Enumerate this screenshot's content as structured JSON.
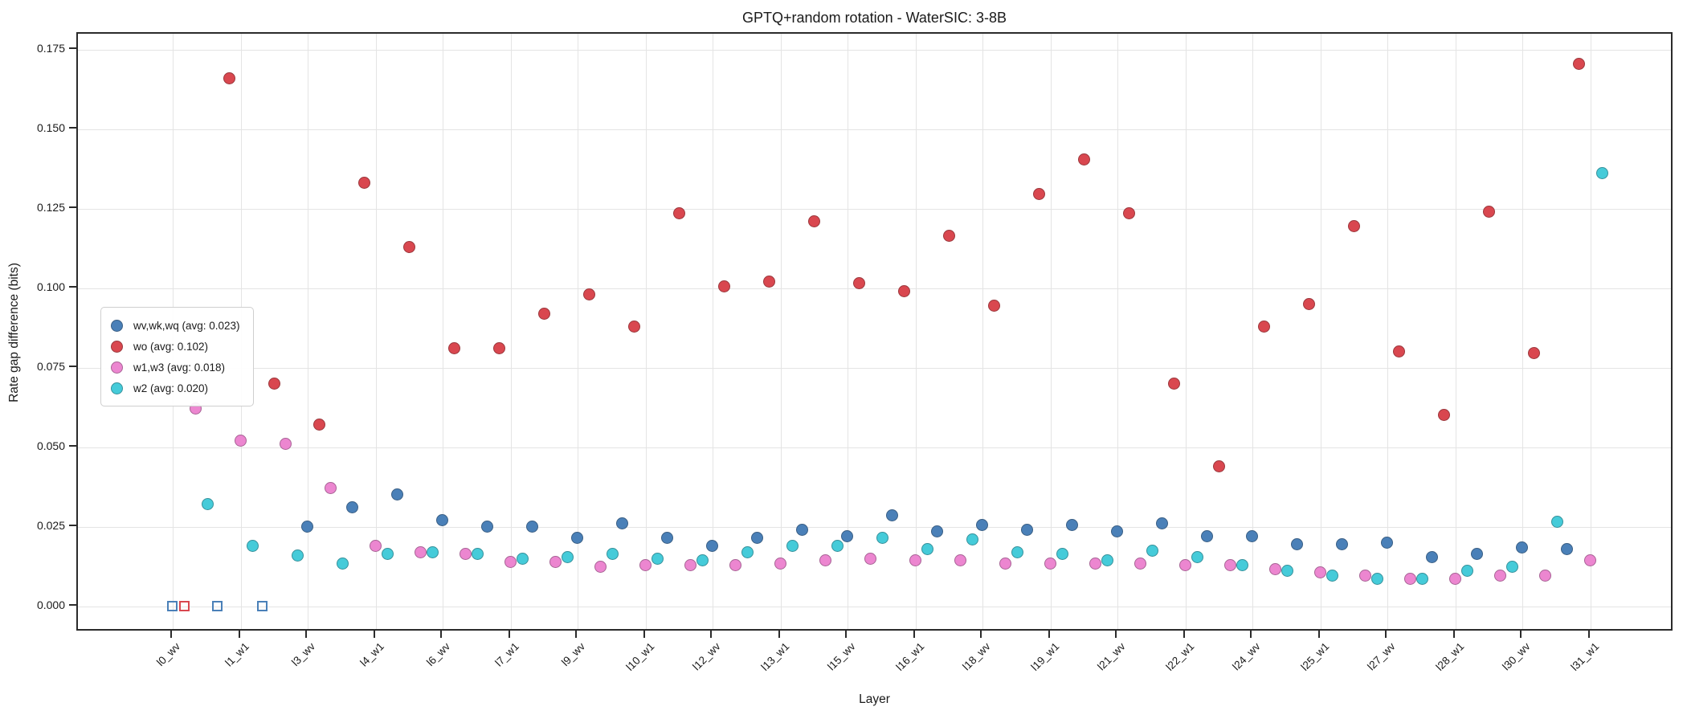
{
  "chart_data": {
    "type": "scatter",
    "title": "GPTQ+random rotation - WaterSIC: 3-8B",
    "xlabel": "Layer",
    "ylabel": "Rate gap difference (bits)",
    "grid": true,
    "legend_position": "center-left",
    "n_layers": 32,
    "ylim": [
      -0.008,
      0.18
    ],
    "y_tick_values": [
      0.0,
      0.025,
      0.05,
      0.075,
      0.1,
      0.125,
      0.15,
      0.175
    ],
    "y_tick_labels": [
      "0.000",
      "0.025",
      "0.050",
      "0.075",
      "0.100",
      "0.125",
      "0.150",
      "0.175"
    ],
    "x_tick_labels": [
      {
        "layer": 0,
        "align": "wv",
        "label": "l0_wv"
      },
      {
        "layer": 1,
        "align": "w1",
        "label": "l1_w1"
      },
      {
        "layer": 3,
        "align": "wv",
        "label": "l3_wv"
      },
      {
        "layer": 4,
        "align": "w1",
        "label": "l4_w1"
      },
      {
        "layer": 6,
        "align": "wv",
        "label": "l6_wv"
      },
      {
        "layer": 7,
        "align": "w1",
        "label": "l7_w1"
      },
      {
        "layer": 9,
        "align": "wv",
        "label": "l9_wv"
      },
      {
        "layer": 10,
        "align": "w1",
        "label": "l10_w1"
      },
      {
        "layer": 12,
        "align": "wv",
        "label": "l12_wv"
      },
      {
        "layer": 13,
        "align": "w1",
        "label": "l13_w1"
      },
      {
        "layer": 15,
        "align": "wv",
        "label": "l15_wv"
      },
      {
        "layer": 16,
        "align": "w1",
        "label": "l16_w1"
      },
      {
        "layer": 18,
        "align": "wv",
        "label": "l18_wv"
      },
      {
        "layer": 19,
        "align": "w1",
        "label": "l19_w1"
      },
      {
        "layer": 21,
        "align": "wv",
        "label": "l21_wv"
      },
      {
        "layer": 22,
        "align": "w1",
        "label": "l22_w1"
      },
      {
        "layer": 24,
        "align": "wv",
        "label": "l24_wv"
      },
      {
        "layer": 25,
        "align": "w1",
        "label": "l25_w1"
      },
      {
        "layer": 27,
        "align": "wv",
        "label": "l27_wv"
      },
      {
        "layer": 28,
        "align": "w1",
        "label": "l28_w1"
      },
      {
        "layer": 30,
        "align": "wv",
        "label": "l30_wv"
      },
      {
        "layer": 31,
        "align": "w1",
        "label": "l31_w1"
      }
    ],
    "series": [
      {
        "name": "wv,wk,wq",
        "legend_label": "wv,wk,wq (avg: 0.023)",
        "avg": 0.023,
        "color": "#4a80b8",
        "zero_open_square_layers": [
          0,
          1,
          2
        ],
        "values": [
          0,
          0,
          0,
          0.025,
          0.031,
          0.035,
          0.027,
          0.025,
          0.025,
          0.0215,
          0.026,
          0.0215,
          0.019,
          0.0215,
          0.024,
          0.022,
          0.0285,
          0.0235,
          0.0255,
          0.024,
          0.0255,
          0.0235,
          0.026,
          0.022,
          0.022,
          0.0195,
          0.0195,
          0.02,
          0.0155,
          0.0165,
          0.0185,
          0.018
        ]
      },
      {
        "name": "wo",
        "legend_label": "wo (avg: 0.102)",
        "avg": 0.102,
        "color": "#d9474f",
        "zero_open_square_layers": [
          0
        ],
        "values": [
          0,
          0.166,
          0.07,
          0.057,
          0.133,
          0.113,
          0.081,
          0.081,
          0.092,
          0.098,
          0.088,
          0.1235,
          0.1005,
          0.102,
          0.121,
          0.1015,
          0.099,
          0.1165,
          0.0945,
          0.1295,
          0.1405,
          0.1235,
          0.07,
          0.044,
          0.088,
          0.095,
          0.1195,
          0.08,
          0.06,
          0.124,
          0.0795,
          0.1705
        ]
      },
      {
        "name": "w1,w3",
        "legend_label": "w1,w3 (avg: 0.018)",
        "avg": 0.018,
        "color": "#ec86d0",
        "zero_open_square_layers": [],
        "values": [
          0.062,
          0.052,
          0.051,
          0.037,
          0.019,
          0.017,
          0.0165,
          0.014,
          0.014,
          0.0125,
          0.013,
          0.013,
          0.013,
          0.0135,
          0.0145,
          0.015,
          0.0145,
          0.0145,
          0.0135,
          0.0135,
          0.0135,
          0.0135,
          0.013,
          0.013,
          0.0115,
          0.0105,
          0.0095,
          0.0085,
          0.0085,
          0.0095,
          0.0095,
          0.0145
        ]
      },
      {
        "name": "w2",
        "legend_label": "w2 (avg: 0.020)",
        "avg": 0.02,
        "color": "#45cbd9",
        "zero_open_square_layers": [],
        "values": [
          0.032,
          0.019,
          0.016,
          0.0135,
          0.0165,
          0.017,
          0.0165,
          0.015,
          0.0155,
          0.0165,
          0.015,
          0.0145,
          0.017,
          0.019,
          0.019,
          0.0215,
          0.018,
          0.021,
          0.017,
          0.0165,
          0.0145,
          0.0175,
          0.0155,
          0.013,
          0.011,
          0.0095,
          0.0085,
          0.0085,
          0.011,
          0.0125,
          0.0265,
          0.136
        ]
      }
    ]
  }
}
